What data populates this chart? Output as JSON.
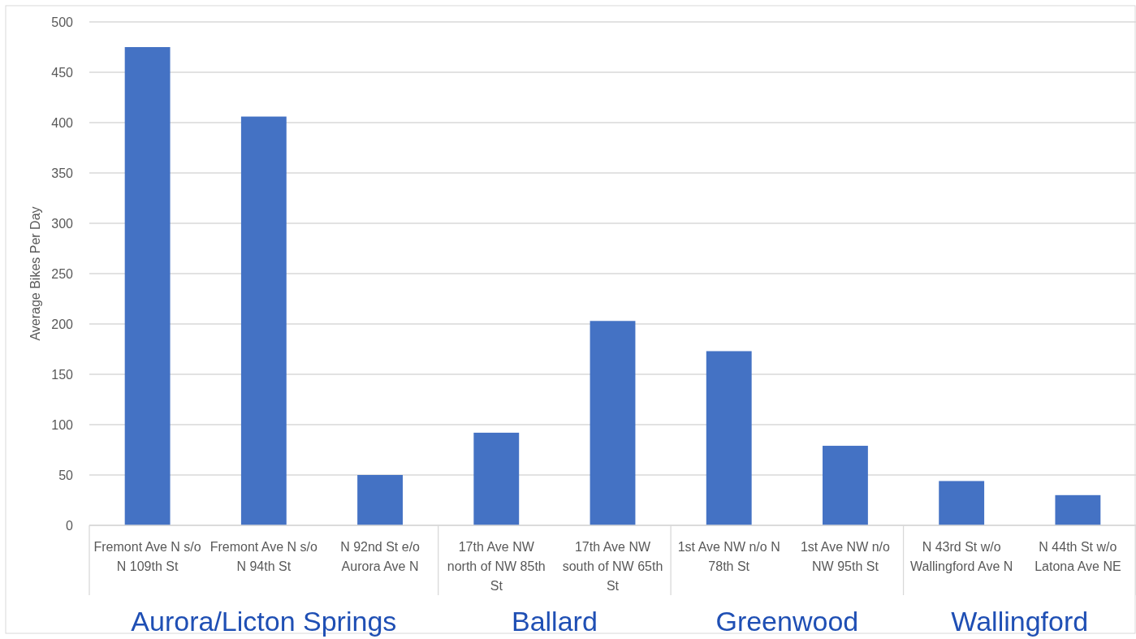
{
  "chart_data": {
    "type": "bar",
    "ylabel": "Average Bikes Per Day",
    "categories": [
      "Fremont Ave N s/o N 109th St",
      "Fremont Ave N s/o N 94th St",
      "N 92nd St e/o Aurora Ave N",
      "17th Ave NW north of NW 85th St",
      "17th Ave NW south of NW 65th St",
      "1st Ave NW n/o N 78th St",
      "1st Ave NW n/o NW 95th St",
      "N 43rd St w/o Wallingford Ave N",
      "N 44th St w/o Latona Ave NE"
    ],
    "values": [
      475,
      406,
      50,
      92,
      203,
      173,
      79,
      44,
      30
    ],
    "color": "#4472c4",
    "ylim": [
      0,
      500
    ],
    "yticks": [
      0,
      50,
      100,
      150,
      200,
      250,
      300,
      350,
      400,
      450,
      500
    ],
    "grid": "y",
    "annotations": [
      "Aurora/Licton Springs",
      "Ballard",
      "Greenwood",
      "Wallingford"
    ]
  }
}
